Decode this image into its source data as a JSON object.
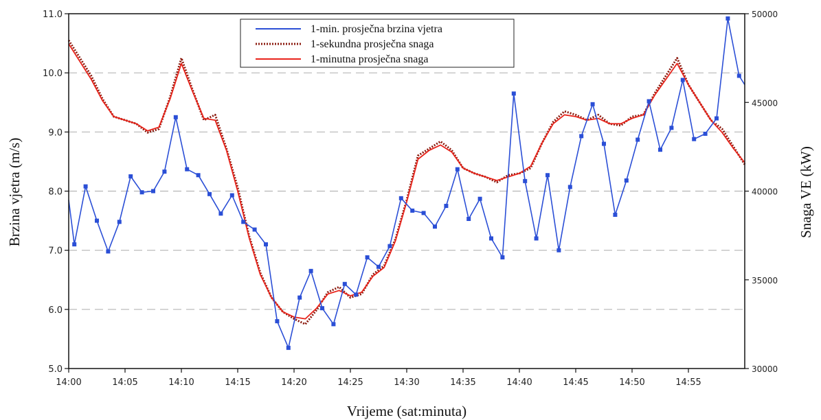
{
  "chart_data": {
    "type": "line",
    "title": "",
    "xlabel": "Vrijeme (sat:minuta)",
    "ylabel": "Brzina vjetra (m/s)",
    "y2label": "Snaga VE (kW)",
    "xlim": [
      0,
      60
    ],
    "ylim": [
      5.0,
      11.0
    ],
    "y2lim": [
      30000,
      50000
    ],
    "x_ticks": [
      0,
      5,
      10,
      15,
      20,
      25,
      30,
      35,
      40,
      45,
      50,
      55
    ],
    "x_tick_labels": [
      "14:00",
      "14:05",
      "14:10",
      "14:15",
      "14:20",
      "14:25",
      "14:30",
      "14:35",
      "14:40",
      "14:45",
      "14:50",
      "14:55"
    ],
    "y_ticks": [
      5.0,
      6.0,
      7.0,
      8.0,
      9.0,
      10.0,
      11.0
    ],
    "y_tick_labels": [
      "5.0",
      "6.0",
      "7.0",
      "8.0",
      "9.0",
      "10.0",
      "11.0"
    ],
    "y2_ticks": [
      30000,
      35000,
      40000,
      45000,
      50000
    ],
    "y2_tick_labels": [
      "30000",
      "35000",
      "40000",
      "45000",
      "50000"
    ],
    "grid": "horizontal dashed",
    "legend_position": "top-center",
    "series": [
      {
        "name": "1-min. prosječna brzina vjetra",
        "axis": "left",
        "color": "#2b4fd6",
        "style": "solid-with-square-markers",
        "x": [
          0,
          0.5,
          1.5,
          2.5,
          3.5,
          4.5,
          5.5,
          6.5,
          7.5,
          8.5,
          9.5,
          10.5,
          11.5,
          12.5,
          13.5,
          14.5,
          15.5,
          16.5,
          17.5,
          18.5,
          19.5,
          20.5,
          21.5,
          22.5,
          23.5,
          24.5,
          25.5,
          26.5,
          27.5,
          28.5,
          29.5,
          30.5,
          31.5,
          32.5,
          33.5,
          34.5,
          35.5,
          36.5,
          37.5,
          38.5,
          39.5,
          40.5,
          41.5,
          42.5,
          43.5,
          44.5,
          45.5,
          46.5,
          47.5,
          48.5,
          49.5,
          50.5,
          51.5,
          52.5,
          53.5,
          54.5,
          55.5,
          56.5,
          57.5,
          58.5,
          59.5,
          60
        ],
        "values": [
          7.85,
          7.1,
          8.08,
          7.5,
          6.98,
          7.48,
          8.25,
          7.98,
          8.0,
          8.33,
          9.25,
          8.37,
          8.27,
          7.95,
          7.62,
          7.93,
          7.48,
          7.35,
          7.1,
          5.8,
          5.35,
          6.2,
          6.65,
          6.02,
          5.75,
          6.43,
          6.25,
          6.88,
          6.72,
          7.07,
          7.88,
          7.67,
          7.63,
          7.4,
          7.75,
          8.37,
          7.53,
          7.87,
          7.2,
          6.88,
          9.65,
          8.17,
          7.2,
          8.27,
          7.0,
          8.07,
          8.93,
          9.47,
          8.8,
          7.6,
          8.18,
          8.87,
          9.52,
          8.7,
          9.07,
          9.88,
          8.88,
          8.97,
          9.23,
          10.92,
          9.95,
          9.8
        ]
      },
      {
        "name": "1-sekundna prosječna snaga",
        "axis": "right",
        "color": "#8b1a0e",
        "style": "dotted",
        "x": [
          0,
          1,
          2,
          3,
          4,
          5,
          6,
          7,
          8,
          9,
          10,
          11,
          12,
          13,
          14,
          15,
          16,
          17,
          18,
          19,
          20,
          21,
          22,
          23,
          24,
          25,
          26,
          27,
          28,
          29,
          30,
          31,
          32,
          33,
          34,
          35,
          36,
          37,
          38,
          39,
          40,
          41,
          42,
          43,
          44,
          45,
          46,
          47,
          48,
          49,
          50,
          51,
          52,
          53,
          54,
          55,
          56,
          57,
          58,
          59,
          60
        ],
        "values": [
          48500,
          47500,
          46500,
          45200,
          44200,
          44000,
          43800,
          43300,
          43500,
          45300,
          47500,
          45700,
          44000,
          44300,
          42400,
          40200,
          37500,
          35400,
          34000,
          33200,
          32800,
          32500,
          33300,
          34300,
          34600,
          34000,
          34200,
          35300,
          35800,
          37300,
          39500,
          42000,
          42400,
          42800,
          42300,
          41300,
          41000,
          40800,
          40500,
          40900,
          41000,
          41300,
          42700,
          43900,
          44500,
          44300,
          44000,
          44300,
          43800,
          43700,
          44200,
          44300,
          45500,
          46500,
          47500,
          46000,
          45000,
          44000,
          43500,
          42500,
          41500
        ]
      },
      {
        "name": "1-minutna prosječna snaga",
        "axis": "right",
        "color": "#e8231a",
        "style": "solid",
        "x": [
          0,
          1,
          2,
          3,
          4,
          5,
          6,
          7,
          8,
          9,
          10,
          11,
          12,
          13,
          14,
          15,
          16,
          17,
          18,
          19,
          20,
          21,
          22,
          23,
          24,
          25,
          26,
          27,
          28,
          29,
          30,
          31,
          32,
          33,
          34,
          35,
          36,
          37,
          38,
          39,
          40,
          41,
          42,
          43,
          44,
          45,
          46,
          47,
          48,
          49,
          50,
          51,
          52,
          53,
          54,
          55,
          56,
          57,
          58,
          59,
          60
        ],
        "values": [
          48300,
          47300,
          46300,
          45100,
          44200,
          44000,
          43800,
          43400,
          43600,
          45200,
          47200,
          45600,
          44100,
          44000,
          42300,
          40000,
          37400,
          35300,
          34000,
          33200,
          32900,
          32800,
          33400,
          34200,
          34400,
          34100,
          34300,
          35200,
          35700,
          37200,
          39400,
          41800,
          42300,
          42600,
          42200,
          41300,
          41000,
          40800,
          40600,
          40800,
          41000,
          41400,
          42700,
          43800,
          44300,
          44200,
          44000,
          44100,
          43800,
          43800,
          44100,
          44300,
          45400,
          46300,
          47200,
          46000,
          45000,
          44000,
          43300,
          42400,
          41600
        ]
      }
    ]
  }
}
